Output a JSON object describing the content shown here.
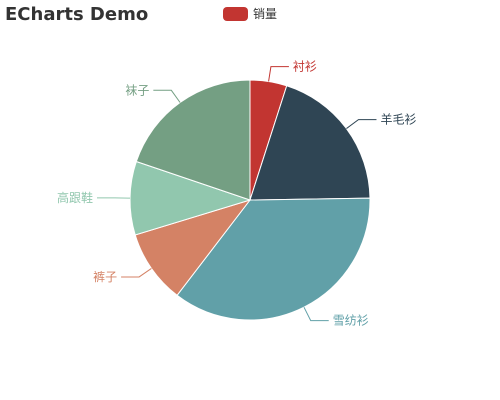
{
  "title": "ECharts Demo",
  "legend": {
    "label": "销量",
    "color": "#c23531"
  },
  "chart_data": {
    "type": "pie",
    "series": [
      {
        "name": "销量",
        "data": [
          {
            "name": "衬衫",
            "value": 5,
            "color": "#c23531"
          },
          {
            "name": "羊毛衫",
            "value": 20,
            "color": "#2f4554"
          },
          {
            "name": "雪纺衫",
            "value": 36,
            "color": "#61a0a8"
          },
          {
            "name": "裤子",
            "value": 10,
            "color": "#d48265"
          },
          {
            "name": "高跟鞋",
            "value": 10,
            "color": "#91c7ae"
          },
          {
            "name": "袜子",
            "value": 20,
            "color": "#749f83"
          }
        ]
      }
    ]
  }
}
